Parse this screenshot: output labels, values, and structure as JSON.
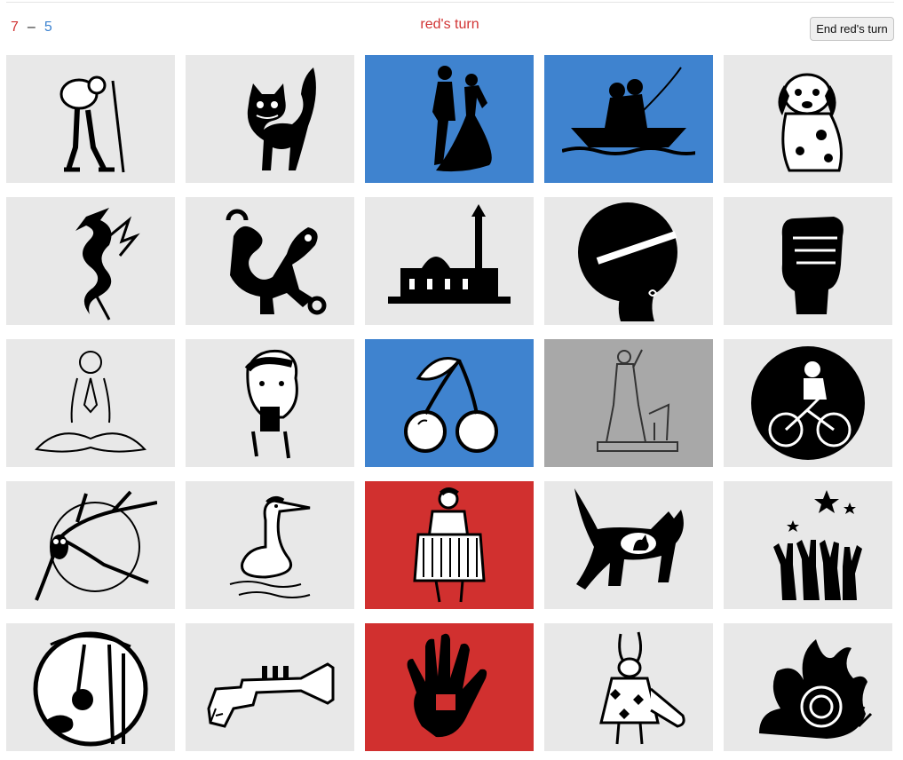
{
  "header": {
    "score_red": "7",
    "score_separator": "–",
    "score_blue": "5",
    "turn_text": "red's turn",
    "end_turn_label": "End red's turn"
  },
  "colors": {
    "red": "#d1302f",
    "blue": "#3f83cf",
    "neutral": "#e8e8e8",
    "assassin": "#a8a8a8"
  },
  "cards": [
    {
      "icon": "hiker-icon",
      "state": "neutral"
    },
    {
      "icon": "black-cat-icon",
      "state": "neutral"
    },
    {
      "icon": "dancing-couple-icon",
      "state": "blue"
    },
    {
      "icon": "couple-in-boat-icon",
      "state": "blue"
    },
    {
      "icon": "dalmatian-puppy-icon",
      "state": "neutral"
    },
    {
      "icon": "dragon-icon",
      "state": "neutral"
    },
    {
      "icon": "tribal-lizard-icon",
      "state": "neutral"
    },
    {
      "icon": "mosque-icon",
      "state": "neutral"
    },
    {
      "icon": "afro-woman-silhouette-icon",
      "state": "neutral"
    },
    {
      "icon": "raised-fist-icon",
      "state": "neutral"
    },
    {
      "icon": "meditation-icon",
      "state": "neutral"
    },
    {
      "icon": "boy-with-camera-icon",
      "state": "neutral"
    },
    {
      "icon": "cherries-icon",
      "state": "blue"
    },
    {
      "icon": "goddess-statue-icon",
      "state": "assassin"
    },
    {
      "icon": "cyclist-icon",
      "state": "neutral"
    },
    {
      "icon": "owl-on-branch-icon",
      "state": "neutral"
    },
    {
      "icon": "grebe-bird-icon",
      "state": "neutral"
    },
    {
      "icon": "accordion-player-icon",
      "state": "red"
    },
    {
      "icon": "cat-silhouette-icon",
      "state": "neutral"
    },
    {
      "icon": "hands-and-stars-icon",
      "state": "neutral"
    },
    {
      "icon": "swinging-child-icon",
      "state": "neutral"
    },
    {
      "icon": "gun-trumpet-icon",
      "state": "neutral"
    },
    {
      "icon": "handprint-icon",
      "state": "red"
    },
    {
      "icon": "white-rabbit-icon",
      "state": "neutral"
    },
    {
      "icon": "flame-snail-icon",
      "state": "neutral"
    }
  ]
}
